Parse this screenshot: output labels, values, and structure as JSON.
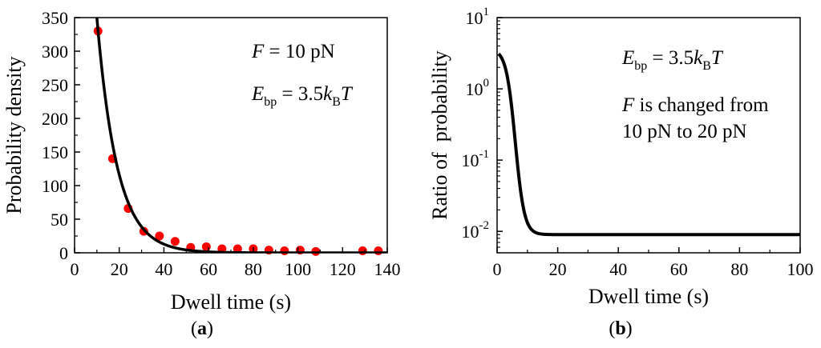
{
  "chart_data": [
    {
      "type": "scatter",
      "panel_label": "a",
      "xlabel": "Dwell time (s)",
      "ylabel": "Probability density",
      "xlim": [
        0,
        140
      ],
      "ylim": [
        0,
        350
      ],
      "xticks": [
        "0",
        "20",
        "40",
        "60",
        "80",
        "100",
        "120",
        "140"
      ],
      "yticks": [
        "0",
        "50",
        "100",
        "150",
        "200",
        "250",
        "300",
        "350"
      ],
      "annotations": {
        "force_sym": "F",
        "force_val": " = 10 pN",
        "energy_sym": "E",
        "energy_sub": "bp",
        "energy_eq": " = 3.5",
        "energy_k": "k",
        "energy_ksub": "B",
        "energy_T": "T"
      },
      "series": [
        {
          "type": "scatter",
          "color": "#ff0000",
          "x": [
            10.5,
            17,
            24,
            31,
            38,
            45,
            52,
            59,
            66,
            73,
            80,
            87,
            94,
            101,
            108,
            129,
            136
          ],
          "y": [
            330,
            140,
            66,
            32,
            25,
            17,
            8,
            9,
            6,
            6,
            6,
            4,
            3,
            4,
            2,
            3,
            3
          ]
        },
        {
          "type": "line",
          "color": "#000000",
          "function": "exp_decay",
          "amplitude": 1050,
          "rate": 0.11,
          "x_start": 9,
          "x_end": 140
        }
      ]
    },
    {
      "type": "line",
      "panel_label": "b",
      "xlabel": "Dwell time (s)",
      "ylabel": "Ratio of  probability",
      "xlim": [
        0,
        100
      ],
      "yscale": "log",
      "ylim": [
        0.005,
        10
      ],
      "xticks": [
        "0",
        "20",
        "40",
        "60",
        "80",
        "100"
      ],
      "yticks": [
        {
          "base": "10",
          "exp": "1"
        },
        {
          "base": "10",
          "exp": "0"
        },
        {
          "base": "10",
          "exp": "-1"
        },
        {
          "base": "10",
          "exp": "-2"
        }
      ],
      "annotations": {
        "energy_sym": "E",
        "energy_sub": "bp",
        "energy_eq": " = 3.5",
        "energy_k": "k",
        "energy_ksub": "B",
        "energy_T": "T",
        "line2_sym": "F",
        "line2_rest": " is changed from",
        "line3": "10 pN to 20 pN"
      },
      "series": [
        {
          "type": "line",
          "color": "#000000",
          "function": "sigmoid_decay",
          "y_start": 3.6,
          "y_end": 0.009,
          "x_start": 0.5,
          "x_end": 100
        }
      ]
    }
  ]
}
